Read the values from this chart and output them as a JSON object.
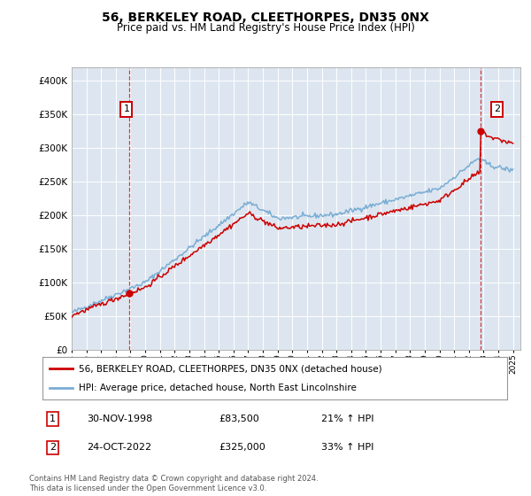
{
  "title": "56, BERKELEY ROAD, CLEETHORPES, DN35 0NX",
  "subtitle": "Price paid vs. HM Land Registry's House Price Index (HPI)",
  "legend_line1": "56, BERKELEY ROAD, CLEETHORPES, DN35 0NX (detached house)",
  "legend_line2": "HPI: Average price, detached house, North East Lincolnshire",
  "annotation1_label": "1",
  "annotation1_date": "30-NOV-1998",
  "annotation1_price": "£83,500",
  "annotation1_hpi": "21% ↑ HPI",
  "annotation1_year": 1998.92,
  "annotation1_value": 83500,
  "annotation2_label": "2",
  "annotation2_date": "24-OCT-2022",
  "annotation2_price": "£325,000",
  "annotation2_hpi": "33% ↑ HPI",
  "annotation2_year": 2022.79,
  "annotation2_value": 325000,
  "ylim_max": 420000,
  "xlim_start": 1995.0,
  "xlim_end": 2025.5,
  "bg_color": "#dde6f0",
  "red_color": "#cc0000",
  "blue_color": "#7aadd4",
  "footer": "Contains HM Land Registry data © Crown copyright and database right 2024.\nThis data is licensed under the Open Government Licence v3.0."
}
